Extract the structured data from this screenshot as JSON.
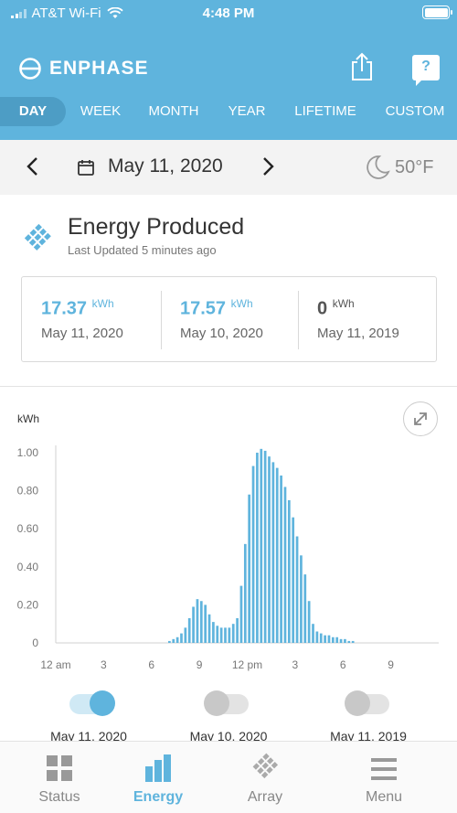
{
  "status_bar": {
    "carrier": "AT&T Wi-Fi",
    "time": "4:48 PM"
  },
  "header": {
    "brand": "ENPHASE"
  },
  "tabs": [
    {
      "label": "DAY",
      "active": true
    },
    {
      "label": "WEEK",
      "active": false
    },
    {
      "label": "MONTH",
      "active": false
    },
    {
      "label": "YEAR",
      "active": false
    },
    {
      "label": "LIFETIME",
      "active": false
    },
    {
      "label": "CUSTOM",
      "active": false
    }
  ],
  "date_nav": {
    "date": "May 11, 2020",
    "temperature": "50°F"
  },
  "energy": {
    "title": "Energy Produced",
    "updated": "Last Updated 5 minutes ago"
  },
  "stats": [
    {
      "value": "17.37",
      "unit": "kWh",
      "date": "May 11, 2020",
      "accent": true
    },
    {
      "value": "17.57",
      "unit": "kWh",
      "date": "May 10, 2020",
      "accent": true
    },
    {
      "value": "0",
      "unit": "kWh",
      "date": "May 11, 2019",
      "accent": false
    }
  ],
  "chart_data": {
    "type": "bar",
    "ylabel": "kWh",
    "ylim": [
      0,
      1.0
    ],
    "y_ticks": [
      "1.00",
      "0.80",
      "0.60",
      "0.40",
      "0.20",
      "0"
    ],
    "x_ticks": [
      "12 am",
      "3",
      "6",
      "9",
      "12 pm",
      "3",
      "6",
      "9"
    ],
    "x_hours_range": [
      0,
      24
    ],
    "interval_minutes": 15,
    "start_hour": 7.0,
    "values": [
      0.01,
      0.02,
      0.03,
      0.05,
      0.08,
      0.13,
      0.19,
      0.23,
      0.22,
      0.2,
      0.15,
      0.11,
      0.09,
      0.08,
      0.08,
      0.08,
      0.1,
      0.13,
      0.3,
      0.52,
      0.78,
      0.93,
      1.0,
      1.02,
      1.01,
      0.98,
      0.95,
      0.92,
      0.88,
      0.82,
      0.75,
      0.66,
      0.56,
      0.46,
      0.36,
      0.22,
      0.1,
      0.06,
      0.05,
      0.04,
      0.04,
      0.03,
      0.03,
      0.02,
      0.02,
      0.01,
      0.01
    ],
    "color": "#5fb4dd",
    "grid": false
  },
  "toggles": [
    {
      "label": "May 11, 2020",
      "on": true
    },
    {
      "label": "May 10, 2020",
      "on": false
    },
    {
      "label": "May 11, 2019",
      "on": false
    }
  ],
  "tab_bar": [
    {
      "label": "Status",
      "icon": "status-icon",
      "active": false
    },
    {
      "label": "Energy",
      "icon": "energy-icon",
      "active": true
    },
    {
      "label": "Array",
      "icon": "array-icon",
      "active": false
    },
    {
      "label": "Menu",
      "icon": "menu-icon",
      "active": false
    }
  ],
  "colors": {
    "accent": "#5fb4dd",
    "header": "#5fb4dd",
    "active_tab_pill": "#4d9dc5"
  }
}
